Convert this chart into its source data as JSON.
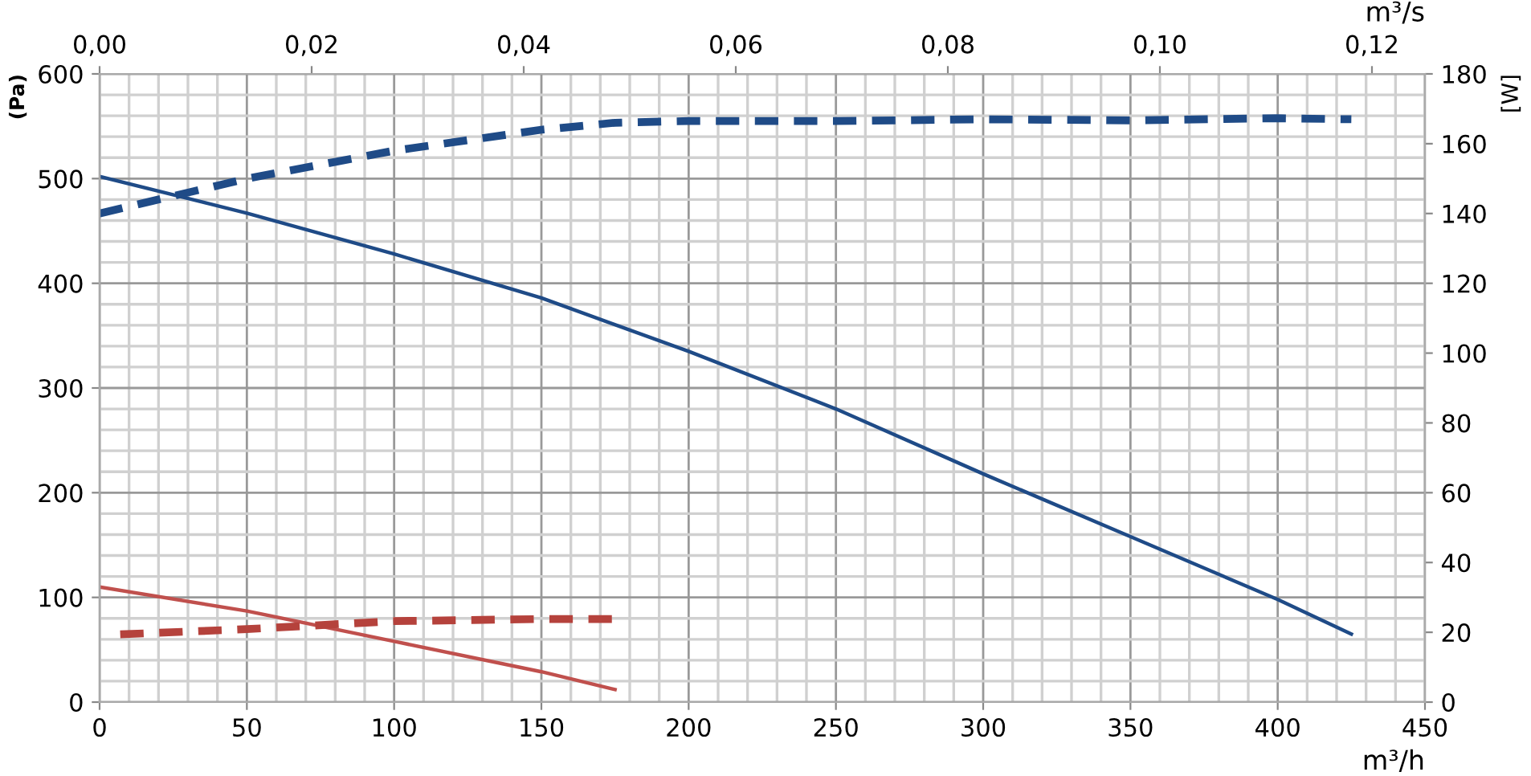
{
  "chart_data": {
    "type": "line",
    "xlabel": "m³/h",
    "ylabel": "(Pa)",
    "y2label": "[W]",
    "x2label": "m³/s",
    "xlim": [
      0,
      450
    ],
    "xticks": [
      0,
      {
        "value": 10,
        "label": null
      },
      {
        "value": 20,
        "label": null
      },
      {
        "value": 30,
        "label": null
      },
      {
        "value": 40,
        "label": null
      },
      50,
      {
        "value": 60,
        "label": null
      },
      {
        "value": 70,
        "label": null
      },
      {
        "value": 80,
        "label": null
      },
      {
        "value": 90,
        "label": null
      },
      100,
      {
        "value": 110,
        "label": null
      },
      {
        "value": 120,
        "label": null
      },
      {
        "value": 130,
        "label": null
      },
      {
        "value": 140,
        "label": null
      },
      150,
      {
        "value": 160,
        "label": null
      },
      {
        "value": 170,
        "label": null
      },
      {
        "value": 180,
        "label": null
      },
      {
        "value": 190,
        "label": null
      },
      200,
      {
        "value": 210,
        "label": null
      },
      {
        "value": 220,
        "label": null
      },
      {
        "value": 230,
        "label": null
      },
      {
        "value": 240,
        "label": null
      },
      250,
      {
        "value": 260,
        "label": null
      },
      {
        "value": 270,
        "label": null
      },
      {
        "value": 280,
        "label": null
      },
      {
        "value": 290,
        "label": null
      },
      300,
      {
        "value": 310,
        "label": null
      },
      {
        "value": 320,
        "label": null
      },
      {
        "value": 330,
        "label": null
      },
      {
        "value": 340,
        "label": null
      },
      350,
      {
        "value": 360,
        "label": null
      },
      {
        "value": 370,
        "label": null
      },
      {
        "value": 380,
        "label": null
      },
      {
        "value": 390,
        "label": null
      },
      400,
      {
        "value": 410,
        "label": null
      },
      {
        "value": 420,
        "label": null
      },
      {
        "value": 430,
        "label": null
      },
      {
        "value": 440,
        "label": null
      },
      450
    ],
    "x2lim": [
      0,
      0.125
    ],
    "x2ticks": [
      {
        "value": 0,
        "label": "0,00"
      },
      {
        "value": 0.02,
        "label": "0,02"
      },
      {
        "value": 0.04,
        "label": "0,04"
      },
      {
        "value": 0.06,
        "label": "0,06"
      },
      {
        "value": 0.08,
        "label": "0,08"
      },
      {
        "value": 0.1,
        "label": "0,10"
      },
      {
        "value": 0.12,
        "label": "0,12"
      }
    ],
    "ylim": [
      0,
      600
    ],
    "yticks": [
      0,
      {
        "value": 20,
        "label": null
      },
      {
        "value": 40,
        "label": null
      },
      {
        "value": 60,
        "label": null
      },
      {
        "value": 80,
        "label": null
      },
      100,
      {
        "value": 120,
        "label": null
      },
      {
        "value": 140,
        "label": null
      },
      {
        "value": 160,
        "label": null
      },
      {
        "value": 180,
        "label": null
      },
      200,
      {
        "value": 220,
        "label": null
      },
      {
        "value": 240,
        "label": null
      },
      {
        "value": 260,
        "label": null
      },
      {
        "value": 280,
        "label": null
      },
      300,
      {
        "value": 320,
        "label": null
      },
      {
        "value": 340,
        "label": null
      },
      {
        "value": 360,
        "label": null
      },
      {
        "value": 380,
        "label": null
      },
      400,
      {
        "value": 420,
        "label": null
      },
      {
        "value": 440,
        "label": null
      },
      {
        "value": 460,
        "label": null
      },
      {
        "value": 480,
        "label": null
      },
      500,
      {
        "value": 520,
        "label": null
      },
      {
        "value": 540,
        "label": null
      },
      {
        "value": 560,
        "label": null
      },
      {
        "value": 580,
        "label": null
      },
      600
    ],
    "y2lim": [
      0,
      180
    ],
    "y2ticks": [
      0,
      20,
      40,
      60,
      80,
      100,
      120,
      140,
      160,
      180
    ],
    "grid": true,
    "marker": "none",
    "series": [
      {
        "color": "#1f4b87",
        "line_style": "solid",
        "x": [
          0,
          50,
          100,
          150,
          200,
          250,
          300,
          350,
          400,
          425
        ],
        "values": [
          502,
          467,
          428,
          386,
          335,
          280,
          218,
          158,
          98,
          65
        ]
      },
      {
        "color": "#1f4b87",
        "line_style": "dashed",
        "axis": "y2",
        "x": [
          0,
          25,
          50,
          75,
          100,
          125,
          150,
          175,
          200,
          250,
          300,
          350,
          400,
          425
        ],
        "values": [
          140,
          145,
          150,
          154,
          158,
          161,
          164,
          166,
          166.5,
          166.5,
          167,
          166.7,
          167.3,
          167
        ]
      },
      {
        "color": "#c0504d",
        "line_style": "solid",
        "x": [
          0,
          50,
          100,
          150,
          175
        ],
        "values": [
          110,
          87,
          58,
          29,
          12
        ]
      },
      {
        "color": "#b5423c",
        "line_style": "dashed",
        "axis": "y2",
        "x": [
          7,
          50,
          100,
          150,
          175
        ],
        "values": [
          19.4,
          20.9,
          23.2,
          23.8,
          23.8
        ]
      }
    ]
  }
}
